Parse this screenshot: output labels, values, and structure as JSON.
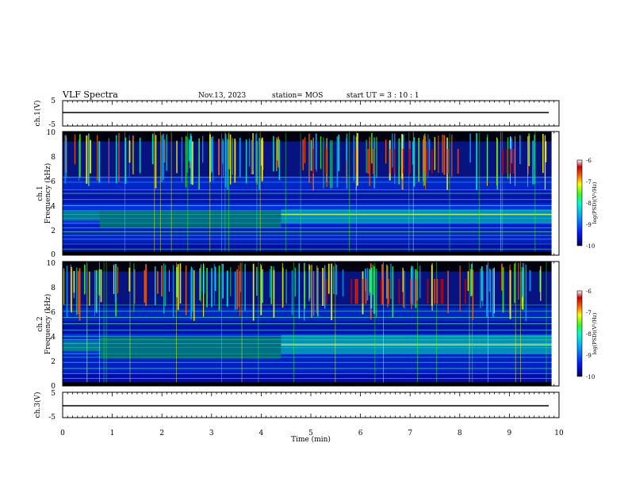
{
  "header": {
    "title": "VLF Spectra",
    "date": "Nov.13, 2023",
    "station": "station= MOS",
    "start_ut": "start  UT =   3 : 10 : 1"
  },
  "chart_data": [
    {
      "type": "line",
      "panel": "ch1",
      "ylabel": "ch.1(V)",
      "ylim": [
        -5,
        5
      ],
      "y_ticks": [
        "5",
        "-5"
      ],
      "x": [
        0,
        10
      ],
      "values": [
        0,
        0
      ]
    },
    {
      "type": "heatmap",
      "panel": "ch1-spectrogram",
      "ylabel": "ch.1\nFrequency (kHz)",
      "ylim": [
        0,
        10
      ],
      "y_ticks": [
        "0",
        "2",
        "4",
        "6",
        "8",
        "10"
      ],
      "colorbar": {
        "label": "log(PSD)(V²/Hz)",
        "range": [
          -10,
          -6
        ],
        "ticks": [
          "-6",
          "-7",
          "-8",
          "-9",
          "-10"
        ]
      }
    },
    {
      "type": "heatmap",
      "panel": "ch2-spectrogram",
      "ylabel": "ch.2\nFrequency (kHz)",
      "ylim": [
        0,
        10
      ],
      "y_ticks": [
        "0",
        "2",
        "4",
        "6",
        "8",
        "10"
      ],
      "colorbar": {
        "label": "log(PSD)(V²/Hz)",
        "range": [
          -10,
          -6
        ],
        "ticks": [
          "-6",
          "-7",
          "-8",
          "-9",
          "-10"
        ]
      }
    },
    {
      "type": "line",
      "panel": "ch3",
      "ylabel": "ch.3(V)",
      "ylim": [
        -5,
        5
      ],
      "y_ticks": [
        "5",
        "-5"
      ],
      "x": [
        0,
        10
      ],
      "values": [
        0,
        0
      ]
    }
  ],
  "x_axis": {
    "label": "Time  (min)",
    "range": [
      0,
      10
    ],
    "ticks": [
      "0",
      "1",
      "2",
      "3",
      "4",
      "5",
      "6",
      "7",
      "8",
      "9",
      "10"
    ]
  },
  "colors": {
    "background": "#ffffff",
    "colormap": [
      "#00005a",
      "#0018ff",
      "#00a8ff",
      "#00ffd0",
      "#30ff20",
      "#ffff00",
      "#ff6000",
      "#c80000",
      "#ffffff"
    ]
  }
}
